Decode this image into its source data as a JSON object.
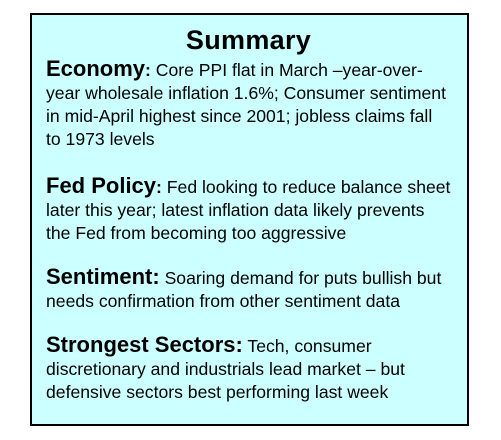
{
  "title": "Summary",
  "sections": [
    {
      "heading": "Economy",
      "separator": ":",
      "text": " Core PPI flat in March –year-over-year wholesale inflation 1.6%; Consumer sentiment in mid-April highest since 2001; jobless claims fall to 1973 levels"
    },
    {
      "heading": "Fed Policy",
      "separator": ":",
      "text": " Fed looking to reduce balance sheet later this year; latest inflation data likely prevents the Fed from becoming too aggressive"
    },
    {
      "heading": "Sentiment:",
      "separator": "",
      "text": " Soaring demand for puts bullish but needs confirmation from other sentiment data"
    },
    {
      "heading": "Strongest Sectors:",
      "separator": "",
      "text": " Tech, consumer discretionary and industrials lead market – but defensive sectors best performing last week"
    }
  ],
  "colors": {
    "box_background": "#ccffff",
    "border": "#000000",
    "text": "#000000"
  }
}
